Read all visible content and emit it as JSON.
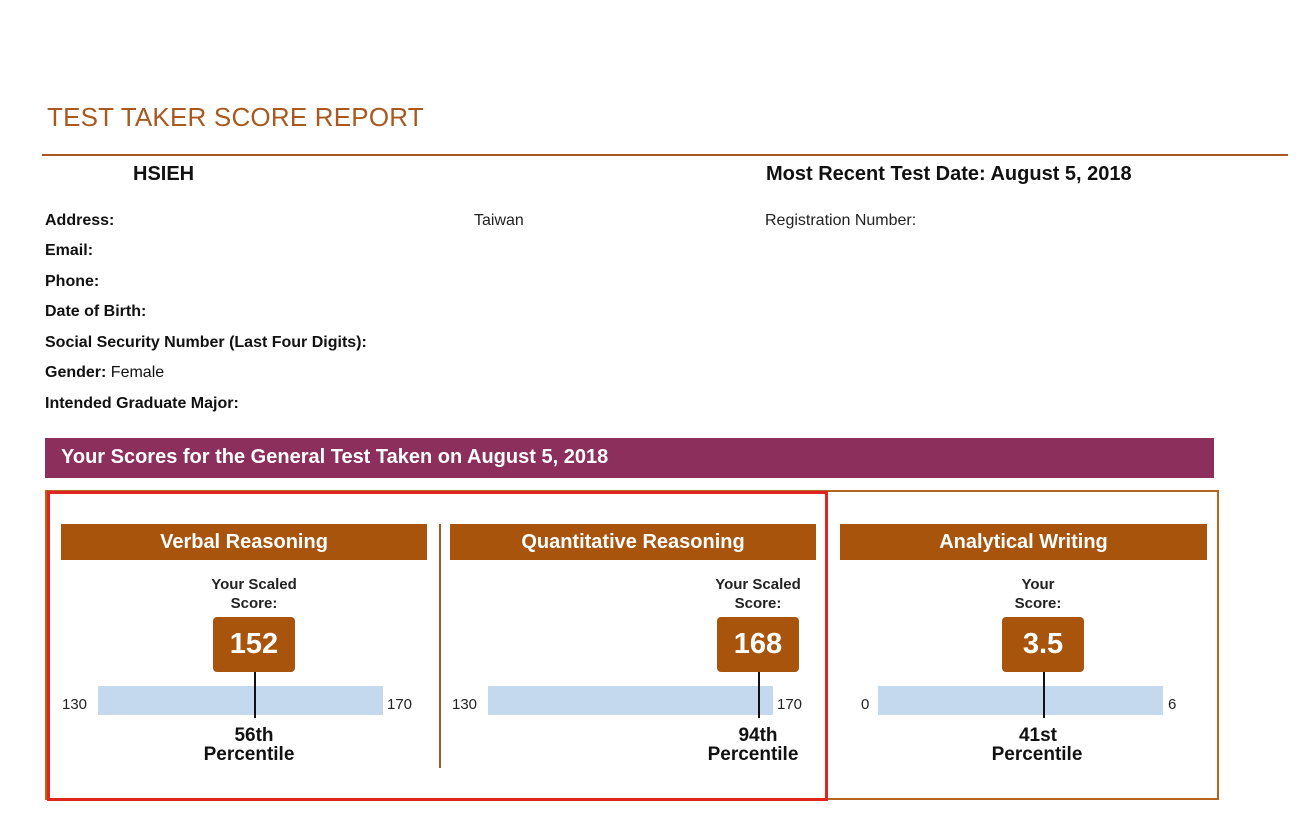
{
  "header": {
    "title": "TEST TAKER SCORE REPORT",
    "name": "HSIEH",
    "most_recent_test_date": "Most Recent Test Date: August 5, 2018"
  },
  "info": {
    "address_label": "Address:",
    "address_value": "Taiwan",
    "registration_label": "Registration Number:",
    "email_label": "Email:",
    "phone_label": "Phone:",
    "dob_label": "Date of Birth:",
    "ssn_label": "Social Security Number (Last Four Digits):",
    "gender_label": "Gender:",
    "gender_value": "Female",
    "major_label": "Intended Graduate Major:"
  },
  "scores_banner": "Your Scores for the General Test Taken on August 5, 2018",
  "colors": {
    "title": "#a9591f",
    "banner": "#8c2f5c",
    "section_header": "#a9540c",
    "bar": "#c5d9ee",
    "highlight_border": "#e0241f"
  },
  "sections": [
    {
      "name": "Verbal Reasoning",
      "score_label_line1": "Your Scaled",
      "score_label_line2": "Score:",
      "score": "152",
      "score_value": 152,
      "min_label": "130",
      "max_label": "170",
      "min": 130,
      "max": 170,
      "percentile": "56th",
      "percentile_label": "Percentile"
    },
    {
      "name": "Quantitative Reasoning",
      "score_label_line1": "Your Scaled",
      "score_label_line2": "Score:",
      "score": "168",
      "score_value": 168,
      "min_label": "130",
      "max_label": "170",
      "min": 130,
      "max": 170,
      "percentile": "94th",
      "percentile_label": "Percentile"
    },
    {
      "name": "Analytical Writing",
      "score_label_line1": "Your",
      "score_label_line2": "Score:",
      "score": "3.5",
      "score_value": 3.5,
      "min_label": "0",
      "max_label": "6",
      "min": 0,
      "max": 6,
      "percentile": "41st",
      "percentile_label": "Percentile"
    }
  ]
}
